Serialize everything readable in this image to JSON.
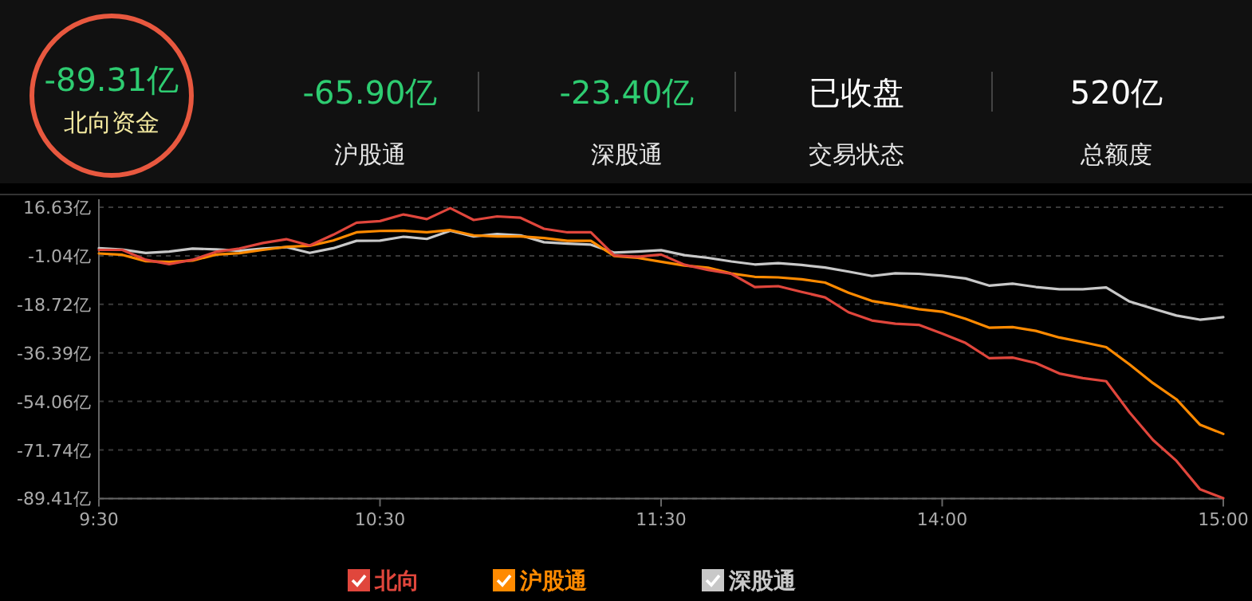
{
  "chart_data": [
    {
      "type": "other",
      "annotations": [
        "-89.31亿",
        "北向资金",
        "-65.90亿",
        "沪股通",
        "-23.40亿",
        "深股通",
        "已收盘",
        "交易状态",
        "520亿",
        "总额度"
      ]
    },
    {
      "type": "line",
      "categories": [
        "9:30",
        null,
        null,
        null,
        null,
        null,
        null,
        null,
        null,
        null,
        null,
        null,
        "10:30",
        null,
        null,
        null,
        null,
        null,
        null,
        null,
        null,
        null,
        null,
        null,
        "11:30",
        null,
        null,
        null,
        null,
        null,
        null,
        null,
        null,
        null,
        null,
        null,
        "14:00",
        null,
        null,
        null,
        null,
        null,
        null,
        null,
        null,
        null,
        null,
        null,
        "15:00"
      ],
      "ylim": [
        -89.41,
        16.63
      ],
      "yticks": [
        {
          "value": 16.63,
          "label": "16.63亿"
        },
        {
          "value": -1.04,
          "label": "-1.04亿"
        },
        {
          "value": -18.72,
          "label": "-18.72亿"
        },
        {
          "value": -36.39,
          "label": "-36.39亿"
        },
        {
          "value": -54.06,
          "label": "-54.06亿"
        },
        {
          "value": -71.74,
          "label": "-71.74亿"
        },
        {
          "value": -89.41,
          "label": "-89.41亿"
        }
      ],
      "grid": "y",
      "legend": "bottom",
      "series": [
        {
          "name": "北向",
          "color": "#e0463c",
          "values": [
            1.1,
            1.1,
            -2.5,
            -4.1,
            -2.5,
            0.4,
            1.6,
            3.6,
            5.0,
            2.7,
            6.6,
            11.0,
            11.6,
            14.0,
            12.3,
            16.3,
            12.0,
            13.3,
            12.8,
            8.8,
            7.5,
            7.5,
            -0.9,
            -1.4,
            -0.6,
            -4.3,
            -6.2,
            -7.6,
            -12.4,
            -12.1,
            -14.2,
            -16.2,
            -21.6,
            -24.6,
            -25.8,
            -26.2,
            -29.4,
            -32.8,
            -38.3,
            -38.1,
            -40.1,
            -43.9,
            -45.6,
            -46.7,
            -58.1,
            -68.1,
            -75.7,
            -86.0,
            -89.3
          ]
        },
        {
          "name": "沪股通",
          "color": "#ff8a00",
          "values": [
            -0.2,
            -0.7,
            -3.0,
            -3.3,
            -2.8,
            -0.6,
            -0.1,
            1.1,
            2.2,
            2.6,
            4.5,
            7.5,
            8.0,
            8.1,
            7.5,
            8.3,
            6.4,
            6.0,
            6.0,
            5.4,
            4.4,
            4.4,
            -1.1,
            -1.8,
            -3.2,
            -4.6,
            -5.4,
            -7.5,
            -8.7,
            -8.9,
            -9.6,
            -10.8,
            -14.5,
            -17.5,
            -18.9,
            -20.5,
            -21.4,
            -24.0,
            -27.2,
            -27.0,
            -28.4,
            -30.8,
            -32.5,
            -34.3,
            -40.6,
            -47.4,
            -53.3,
            -62.5,
            -65.9
          ]
        },
        {
          "name": "深股通",
          "color": "#c8c8c8",
          "values": [
            1.7,
            1.2,
            0.0,
            0.5,
            1.6,
            1.3,
            0.8,
            1.6,
            2.1,
            0.0,
            1.7,
            4.4,
            4.5,
            5.9,
            5.1,
            8.1,
            6.0,
            6.9,
            6.4,
            3.9,
            3.4,
            3.0,
            0.1,
            0.5,
            1.0,
            -0.8,
            -1.8,
            -3.1,
            -4.2,
            -3.7,
            -4.4,
            -5.3,
            -6.8,
            -8.4,
            -7.4,
            -7.6,
            -8.3,
            -9.3,
            -11.9,
            -11.2,
            -12.4,
            -13.2,
            -13.2,
            -12.6,
            -17.7,
            -20.3,
            -22.8,
            -24.3,
            -23.4
          ]
        }
      ]
    }
  ]
}
